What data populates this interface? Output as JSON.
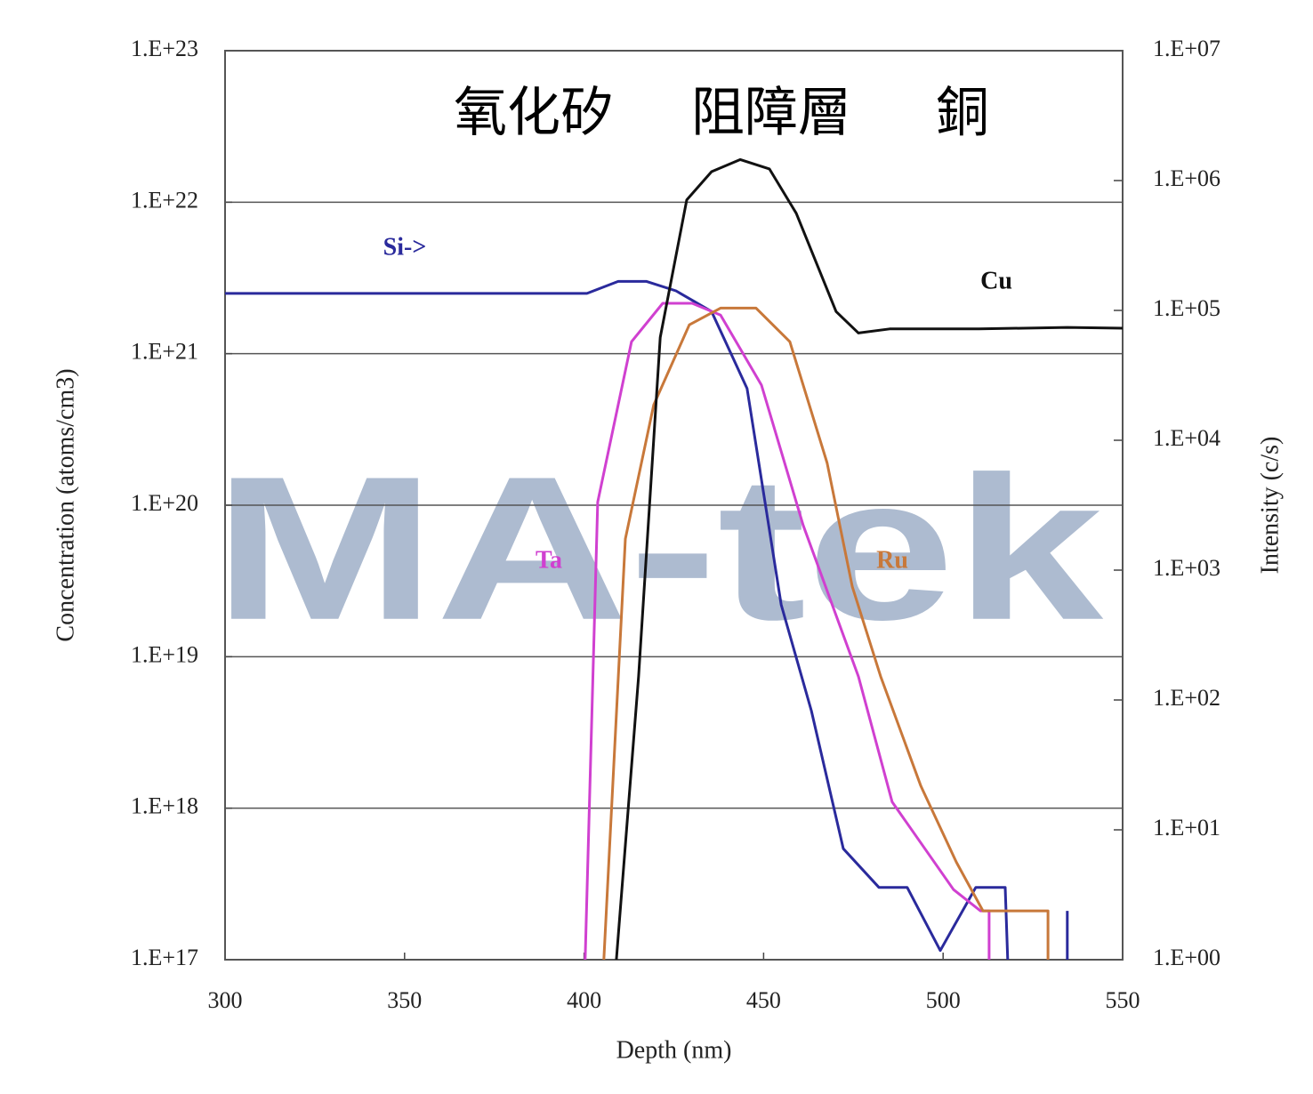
{
  "chart_data": {
    "type": "line",
    "annotations": [
      "氧化矽",
      "阻障層",
      "銅"
    ],
    "watermark": "MA-tek",
    "xlabel": "Depth (nm)",
    "ylabel": "Concentration (atoms/cm3)",
    "y2label": "Intensity (c/s)",
    "yscale": "log",
    "y2scale": "log",
    "grid": true,
    "xlim": [
      300,
      550
    ],
    "xticks": [
      300,
      350,
      400,
      450,
      500,
      550
    ],
    "ylim": [
      1e+17,
      1e+23
    ],
    "yticks": [
      {
        "value": 1e+17,
        "label": "1.E+17"
      },
      {
        "value": 1e+18,
        "label": "1.E+18"
      },
      {
        "value": 1e+19,
        "label": "1.E+19"
      },
      {
        "value": 1e+20,
        "label": "1.E+20"
      },
      {
        "value": 1e+21,
        "label": "1.E+21"
      },
      {
        "value": 1e+22,
        "label": "1.E+22"
      },
      {
        "value": 1e+23,
        "label": "1.E+23"
      }
    ],
    "y2lim": [
      1,
      10000000.0
    ],
    "y2ticks": [
      {
        "value": 1,
        "label": "1.E+00"
      },
      {
        "value": 10,
        "label": "1.E+01"
      },
      {
        "value": 100,
        "label": "1.E+02"
      },
      {
        "value": 1000,
        "label": "1.E+03"
      },
      {
        "value": 10000,
        "label": "1.E+04"
      },
      {
        "value": 100000,
        "label": "1.E+05"
      },
      {
        "value": 1000000,
        "label": "1.E+06"
      },
      {
        "value": 10000000,
        "label": "1.E+07"
      }
    ],
    "series": [
      {
        "name": "Si->",
        "color": "#2a2a9c",
        "x": [
          300,
          400.8,
          409.5,
          417.4,
          425.6,
          435.5,
          445.4,
          454.9,
          463.3,
          472.2,
          482.1,
          490,
          499.2,
          509.1,
          517.3,
          518,
          null,
          534.6,
          534.6
        ],
        "values": [
          2.5e+21,
          2.5e+21,
          3e+21,
          3e+21,
          2.6e+21,
          1.9e+21,
          5.9e+20,
          2.2e+19,
          4.4e+18,
          5.4e+17,
          3e+17,
          3e+17,
          1.15e+17,
          3e+17,
          3e+17,
          1e+17,
          null,
          1e+17,
          2.1e+17
        ]
      },
      {
        "name": "Ta",
        "color": "#d040d0",
        "x": [
          400.3,
          403.8,
          413.2,
          421.9,
          430.1,
          438,
          449.4,
          461,
          476.4,
          485.8,
          502.9,
          510.4,
          512.8,
          512.8
        ],
        "values": [
          1e+17,
          1.05e+20,
          1.2e+21,
          2.15e+21,
          2.15e+21,
          1.8e+21,
          6.2e+20,
          7.4e+19,
          7.4e+18,
          1.1e+18,
          2.9e+17,
          2.1e+17,
          2.1e+17,
          1e+17
        ]
      },
      {
        "name": "Ru",
        "color": "#c8783a",
        "x": [
          405.5,
          411.5,
          419.4,
          429.3,
          438,
          447.9,
          457.3,
          467.7,
          474.7,
          482.6,
          493.8,
          503.7,
          511.1,
          529.2,
          529.2
        ],
        "values": [
          1e+17,
          6e+19,
          4.6e+20,
          1.55e+21,
          2e+21,
          2e+21,
          1.2e+21,
          1.9e+20,
          2.9e+19,
          7.4e+18,
          1.4e+18,
          4.4e+17,
          2.1e+17,
          2.1e+17,
          1e+17
        ]
      },
      {
        "name": "Cu",
        "color": "#111111",
        "axis": "y2",
        "x": [
          409,
          415.2,
          421.2,
          428.6,
          435.5,
          443.5,
          451.6,
          459.1,
          470.2,
          476.4,
          485.1,
          510,
          534.6,
          550
        ],
        "values": [
          1,
          153,
          62000,
          710000,
          1170000,
          1450000,
          1230000,
          560000,
          98000,
          67000,
          72000,
          72000,
          74000,
          73000
        ]
      }
    ]
  }
}
